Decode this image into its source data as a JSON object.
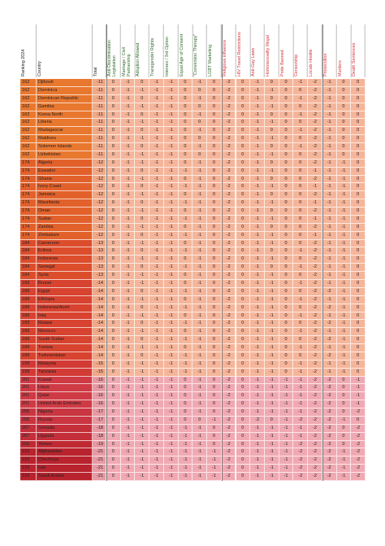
{
  "table": {
    "header": [
      "Ranking 2024",
      "Country",
      "Total",
      "Anti-Discrimination Legislation",
      "Marriage / Civil Partnership",
      "Adoption Allowed",
      "Transgender Rights",
      "Intersex / 3rd Option",
      "Equal Age of Consent",
      "\"Conversion Therapy\"",
      "LGBT Marketing",
      "Religious influence",
      "HIV Travel Restrictions",
      "Anti-Gay Laws",
      "Homosexuality Illegal",
      "Pride Banned",
      "Censorship",
      "Locals Hostile",
      "Prosecution",
      "Murders",
      "Death Sentences"
    ],
    "rows": [
      [
        162,
        "Djibouti",
        -11,
        0,
        -1,
        0,
        -1,
        -1,
        0,
        -1,
        0,
        -2,
        0,
        -1,
        0,
        0,
        -1,
        -2,
        -1,
        0,
        0
      ],
      [
        162,
        "Dominica",
        -11,
        0,
        -1,
        -1,
        -1,
        -1,
        0,
        0,
        0,
        -2,
        0,
        -1,
        -1,
        0,
        0,
        -2,
        -1,
        0,
        0
      ],
      [
        162,
        "Dominican Republic",
        -11,
        0,
        -1,
        0,
        -1,
        -1,
        0,
        -1,
        0,
        -2,
        0,
        -1,
        0,
        0,
        -1,
        -2,
        -1,
        0,
        0
      ],
      [
        162,
        "Gambia",
        -11,
        0,
        -1,
        -1,
        -1,
        -1,
        0,
        0,
        0,
        -2,
        0,
        -1,
        -1,
        0,
        0,
        -2,
        -1,
        0,
        0
      ],
      [
        162,
        "Korea North",
        -11,
        0,
        -1,
        0,
        -1,
        -1,
        0,
        -1,
        0,
        -2,
        0,
        -1,
        0,
        0,
        -1,
        -2,
        -1,
        0,
        0
      ],
      [
        162,
        "Liberia",
        -11,
        0,
        -1,
        -1,
        -1,
        -1,
        0,
        0,
        0,
        -2,
        0,
        -1,
        -1,
        0,
        0,
        -2,
        -1,
        0,
        0
      ],
      [
        162,
        "Madagascar",
        -11,
        0,
        -1,
        0,
        -1,
        -1,
        0,
        -1,
        0,
        -2,
        0,
        -1,
        0,
        0,
        -1,
        -2,
        -1,
        0,
        0
      ],
      [
        162,
        "Maldives",
        -11,
        0,
        -1,
        -1,
        -1,
        -1,
        0,
        0,
        0,
        -2,
        0,
        -1,
        -1,
        0,
        0,
        -2,
        -1,
        0,
        0
      ],
      [
        162,
        "Solomon Islands",
        -11,
        0,
        -1,
        0,
        -1,
        -1,
        0,
        -1,
        0,
        -2,
        0,
        -1,
        0,
        0,
        -1,
        -2,
        -1,
        0,
        0
      ],
      [
        162,
        "Uzbekistan",
        -11,
        0,
        -1,
        -1,
        -1,
        -1,
        0,
        0,
        0,
        -2,
        0,
        -1,
        -1,
        0,
        0,
        -2,
        -1,
        0,
        0
      ],
      [
        174,
        "Algeria",
        -12,
        0,
        -1,
        -1,
        -1,
        -1,
        0,
        -1,
        0,
        -2,
        0,
        -1,
        0,
        0,
        0,
        -2,
        -1,
        -1,
        0
      ],
      [
        174,
        "Eswatini",
        -12,
        0,
        -1,
        0,
        -1,
        -1,
        -1,
        -1,
        0,
        -2,
        0,
        -1,
        -1,
        0,
        0,
        -1,
        -1,
        -1,
        0
      ],
      [
        174,
        "Ghana",
        -12,
        0,
        -1,
        -1,
        -1,
        -1,
        0,
        -1,
        0,
        -2,
        0,
        -1,
        0,
        0,
        0,
        -2,
        -1,
        -1,
        0
      ],
      [
        174,
        "Ivory Coast",
        -12,
        0,
        -1,
        0,
        -1,
        -1,
        -1,
        -1,
        0,
        -2,
        0,
        -1,
        -1,
        0,
        0,
        -1,
        -1,
        -1,
        0
      ],
      [
        174,
        "Jamaica",
        -12,
        0,
        -1,
        -1,
        -1,
        -1,
        0,
        -1,
        0,
        -2,
        0,
        -1,
        0,
        0,
        0,
        -2,
        -1,
        -1,
        0
      ],
      [
        174,
        "Mauritania",
        -12,
        0,
        -1,
        0,
        -1,
        -1,
        -1,
        -1,
        0,
        -2,
        0,
        -1,
        -1,
        0,
        0,
        -1,
        -1,
        -1,
        0
      ],
      [
        174,
        "Oman",
        -12,
        0,
        -1,
        -1,
        -1,
        -1,
        0,
        -1,
        0,
        -2,
        0,
        -1,
        0,
        0,
        0,
        -2,
        -1,
        -1,
        0
      ],
      [
        174,
        "Sudan",
        -12,
        0,
        -1,
        0,
        -1,
        -1,
        -1,
        -1,
        0,
        -2,
        0,
        -1,
        -1,
        0,
        0,
        -1,
        -1,
        -1,
        0
      ],
      [
        174,
        "Zambia",
        -12,
        0,
        -1,
        -1,
        -1,
        -1,
        0,
        -1,
        0,
        -2,
        0,
        -1,
        0,
        0,
        0,
        -2,
        -1,
        -1,
        0
      ],
      [
        174,
        "Zimbabwe",
        -12,
        0,
        -1,
        0,
        -1,
        -1,
        -1,
        -1,
        0,
        -2,
        0,
        -1,
        -1,
        0,
        0,
        -1,
        -1,
        -1,
        0
      ],
      [
        184,
        "Cameroon",
        -13,
        0,
        -1,
        -1,
        -1,
        -1,
        0,
        -1,
        0,
        -2,
        0,
        -1,
        -1,
        0,
        0,
        -2,
        -1,
        -1,
        0
      ],
      [
        184,
        "Eritrea",
        -13,
        0,
        -1,
        0,
        -1,
        -1,
        -1,
        -1,
        0,
        -2,
        0,
        -1,
        0,
        0,
        -1,
        -2,
        -1,
        -1,
        0
      ],
      [
        184,
        "Indonesia",
        -13,
        0,
        -1,
        -1,
        -1,
        -1,
        0,
        -1,
        0,
        -2,
        0,
        -1,
        -1,
        0,
        0,
        -2,
        -1,
        -1,
        0
      ],
      [
        184,
        "Senegal",
        -13,
        0,
        -1,
        0,
        -1,
        -1,
        -1,
        -1,
        0,
        -2,
        0,
        -1,
        0,
        0,
        -1,
        -2,
        -1,
        -1,
        0
      ],
      [
        184,
        "Syria",
        -13,
        0,
        -1,
        -1,
        -1,
        -1,
        0,
        -1,
        0,
        -2,
        0,
        -1,
        -1,
        0,
        0,
        -2,
        -1,
        -1,
        0
      ],
      [
        189,
        "Brunei",
        -14,
        0,
        -1,
        -1,
        -1,
        -1,
        0,
        -1,
        0,
        -2,
        0,
        -1,
        -1,
        0,
        -1,
        -2,
        -1,
        -1,
        0
      ],
      [
        189,
        "Egypt",
        -14,
        0,
        -1,
        0,
        -1,
        -1,
        -1,
        -1,
        0,
        -2,
        0,
        -1,
        -1,
        0,
        0,
        -2,
        -2,
        -1,
        0
      ],
      [
        189,
        "Ethiopia",
        -14,
        0,
        -1,
        -1,
        -1,
        -1,
        0,
        -1,
        0,
        -2,
        0,
        -1,
        -1,
        0,
        -1,
        -2,
        -1,
        -1,
        0
      ],
      [
        189,
        "Indonesia/Aceh",
        -14,
        0,
        -1,
        0,
        -1,
        -1,
        -1,
        -1,
        0,
        -2,
        0,
        -1,
        -1,
        0,
        0,
        -2,
        -2,
        -1,
        0
      ],
      [
        189,
        "Iraq",
        -14,
        0,
        -1,
        -1,
        -1,
        -1,
        0,
        -1,
        0,
        -2,
        0,
        -1,
        -1,
        0,
        -1,
        -2,
        -1,
        -1,
        0
      ],
      [
        189,
        "Malawi",
        -14,
        0,
        -1,
        0,
        -1,
        -1,
        -1,
        -1,
        0,
        -2,
        0,
        -1,
        -1,
        0,
        0,
        -2,
        -2,
        -1,
        0
      ],
      [
        189,
        "Morocco",
        -14,
        0,
        -1,
        -1,
        -1,
        -1,
        0,
        -1,
        0,
        -2,
        0,
        -1,
        -1,
        0,
        -1,
        -2,
        -1,
        -1,
        0
      ],
      [
        189,
        "South Sudan",
        -14,
        0,
        -1,
        0,
        -1,
        -1,
        -1,
        -1,
        0,
        -2,
        0,
        -1,
        -1,
        0,
        0,
        -2,
        -2,
        -1,
        0
      ],
      [
        189,
        "Tunisia",
        -14,
        0,
        -1,
        -1,
        -1,
        -1,
        0,
        -1,
        0,
        -2,
        0,
        -1,
        -1,
        0,
        -1,
        -2,
        -1,
        -1,
        0
      ],
      [
        189,
        "Turkmenistan",
        -14,
        0,
        -1,
        0,
        -1,
        -1,
        -1,
        -1,
        0,
        -2,
        0,
        -1,
        -1,
        0,
        0,
        -2,
        -2,
        -1,
        0
      ],
      [
        199,
        "Malaysia",
        -15,
        0,
        -1,
        -1,
        -1,
        -1,
        -1,
        -1,
        0,
        -2,
        0,
        -1,
        -1,
        0,
        -1,
        -2,
        -1,
        -1,
        0
      ],
      [
        199,
        "Tanzania",
        -15,
        0,
        -1,
        -1,
        -1,
        -1,
        -1,
        -1,
        0,
        -2,
        0,
        -1,
        -1,
        0,
        -1,
        -2,
        -1,
        -1,
        0
      ],
      [
        201,
        "Kuwait",
        -16,
        0,
        -1,
        -1,
        -1,
        -1,
        0,
        -1,
        0,
        -2,
        0,
        -1,
        -1,
        -1,
        -1,
        -2,
        -2,
        0,
        -1
      ],
      [
        201,
        "Libya",
        -16,
        0,
        -1,
        -1,
        -1,
        -1,
        0,
        -1,
        0,
        -2,
        0,
        -1,
        -1,
        -1,
        -1,
        -2,
        -2,
        0,
        -1
      ],
      [
        201,
        "Qatar",
        -16,
        0,
        -1,
        -1,
        -1,
        -1,
        0,
        -1,
        0,
        -2,
        0,
        -1,
        -1,
        -1,
        -1,
        -2,
        -2,
        0,
        -1
      ],
      [
        201,
        "United Arab Emirates",
        -16,
        0,
        -1,
        -1,
        -1,
        -1,
        0,
        -1,
        0,
        -2,
        0,
        -1,
        -1,
        -1,
        -1,
        -2,
        -2,
        0,
        -1
      ],
      [
        205,
        "Nigeria",
        -17,
        0,
        -1,
        -1,
        -1,
        -1,
        0,
        -1,
        0,
        -2,
        0,
        -1,
        -1,
        -1,
        -1,
        -2,
        -2,
        0,
        -2
      ],
      [
        205,
        "Russia",
        -17,
        0,
        -1,
        -1,
        -1,
        -1,
        0,
        0,
        -1,
        -2,
        0,
        -2,
        0,
        -1,
        -2,
        -2,
        -2,
        -1,
        0
      ],
      [
        207,
        "Somalia",
        -18,
        0,
        -1,
        -1,
        -1,
        -1,
        -1,
        -1,
        0,
        -2,
        0,
        -1,
        -1,
        -1,
        -1,
        -2,
        -2,
        0,
        -2
      ],
      [
        207,
        "Uganda",
        -18,
        0,
        -1,
        -1,
        -1,
        -1,
        -1,
        -1,
        0,
        -2,
        0,
        -1,
        -1,
        -1,
        -1,
        -2,
        -2,
        0,
        -2
      ],
      [
        209,
        "Yemen",
        -19,
        0,
        -1,
        -1,
        -1,
        -1,
        -1,
        -1,
        0,
        -2,
        0,
        -1,
        -1,
        -1,
        -2,
        -2,
        -2,
        0,
        -2
      ],
      [
        210,
        "Afghanistan",
        -21,
        0,
        -1,
        -1,
        -1,
        -1,
        -1,
        -1,
        -1,
        -2,
        0,
        -1,
        -1,
        -1,
        -2,
        -2,
        -2,
        -1,
        -2
      ],
      [
        210,
        "Chechnya",
        -21,
        0,
        -1,
        -1,
        -1,
        -1,
        -1,
        -1,
        -1,
        -2,
        0,
        -1,
        -1,
        -1,
        -2,
        -2,
        -2,
        -1,
        -2
      ],
      [
        210,
        "Iran",
        -21,
        0,
        -1,
        -1,
        -1,
        -1,
        -1,
        -1,
        -1,
        -2,
        0,
        -1,
        -1,
        -1,
        -2,
        -2,
        -2,
        -1,
        -2
      ],
      [
        210,
        "Saudi Arabia",
        -21,
        0,
        -1,
        -1,
        -1,
        -1,
        -1,
        -1,
        -1,
        -2,
        0,
        -1,
        -1,
        -1,
        -2,
        -2,
        -2,
        -1,
        -2
      ]
    ]
  }
}
